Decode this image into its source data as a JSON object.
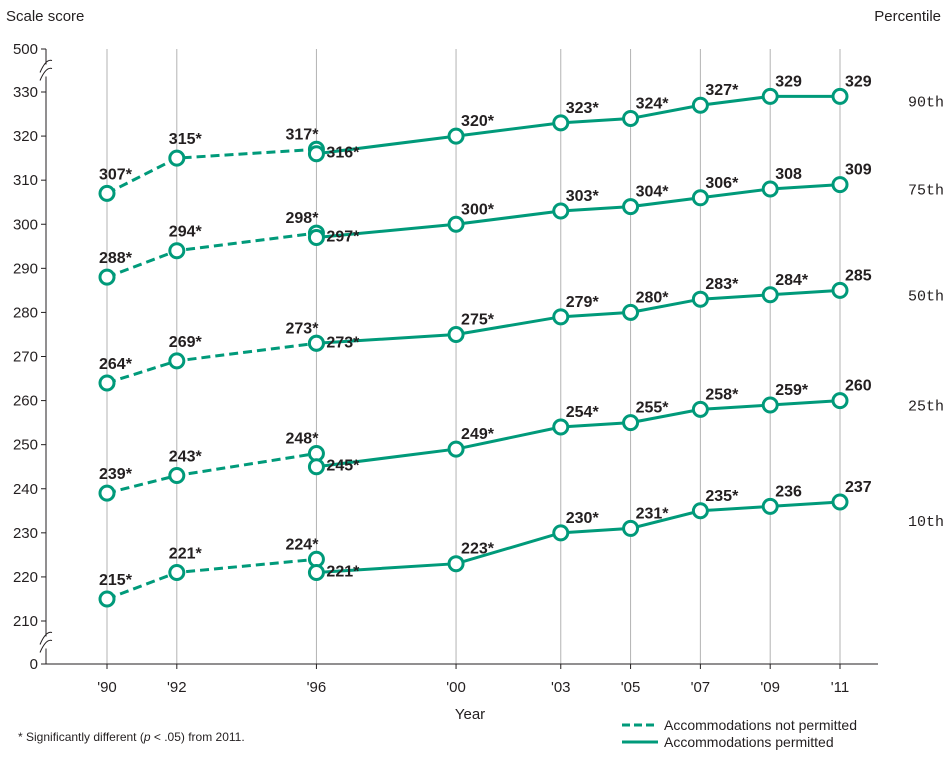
{
  "chart_data": {
    "type": "line",
    "ylabel": "Scale score",
    "xlabel": "Year",
    "right_axis_label": "Percentile",
    "y_ticks": [
      0,
      210,
      220,
      230,
      240,
      250,
      260,
      270,
      280,
      290,
      300,
      310,
      320,
      330,
      500
    ],
    "y_axis_break": "axis is broken between 0 and 210 and between 330 and 500",
    "x_categories": [
      "'90",
      "'92",
      "'96",
      "'00",
      "'03",
      "'05",
      "'07",
      "'09",
      "'11"
    ],
    "x_years": [
      1990,
      1992,
      1996,
      2000,
      2003,
      2005,
      2007,
      2009,
      2011
    ],
    "grid": "vertical lines at each year",
    "series_style": {
      "not_permitted": "dashed",
      "permitted": "solid"
    },
    "colors": {
      "line": "#009a7a",
      "marker_fill": "#ffffff",
      "text": "#231f20",
      "grid": "#b3b3b3"
    },
    "series": [
      {
        "name": "90th",
        "not_permitted": {
          "x": [
            1990,
            1992,
            1996
          ],
          "y": [
            307,
            315,
            317
          ],
          "labels": [
            "307*",
            "315*",
            "317*"
          ]
        },
        "permitted": {
          "x": [
            1996,
            2000,
            2003,
            2005,
            2007,
            2009,
            2011
          ],
          "y": [
            316,
            320,
            323,
            324,
            327,
            329,
            329
          ],
          "labels": [
            "316*",
            "320*",
            "323*",
            "324*",
            "327*",
            "329",
            "329"
          ]
        }
      },
      {
        "name": "75th",
        "not_permitted": {
          "x": [
            1990,
            1992,
            1996
          ],
          "y": [
            288,
            294,
            298
          ],
          "labels": [
            "288*",
            "294*",
            "298*"
          ]
        },
        "permitted": {
          "x": [
            1996,
            2000,
            2003,
            2005,
            2007,
            2009,
            2011
          ],
          "y": [
            297,
            300,
            303,
            304,
            306,
            308,
            309
          ],
          "labels": [
            "297*",
            "300*",
            "303*",
            "304*",
            "306*",
            "308",
            "309"
          ]
        }
      },
      {
        "name": "50th",
        "not_permitted": {
          "x": [
            1990,
            1992,
            1996
          ],
          "y": [
            264,
            269,
            273
          ],
          "labels": [
            "264*",
            "269*",
            "273*"
          ]
        },
        "permitted": {
          "x": [
            1996,
            2000,
            2003,
            2005,
            2007,
            2009,
            2011
          ],
          "y": [
            273,
            275,
            279,
            280,
            283,
            284,
            285
          ],
          "labels": [
            "273*",
            "275*",
            "279*",
            "280*",
            "283*",
            "284*",
            "285"
          ]
        }
      },
      {
        "name": "25th",
        "not_permitted": {
          "x": [
            1990,
            1992,
            1996
          ],
          "y": [
            239,
            243,
            248
          ],
          "labels": [
            "239*",
            "243*",
            "248*"
          ]
        },
        "permitted": {
          "x": [
            1996,
            2000,
            2003,
            2005,
            2007,
            2009,
            2011
          ],
          "y": [
            245,
            249,
            254,
            255,
            258,
            259,
            260
          ],
          "labels": [
            "245*",
            "249*",
            "254*",
            "255*",
            "258*",
            "259*",
            "260"
          ]
        }
      },
      {
        "name": "10th",
        "not_permitted": {
          "x": [
            1990,
            1992,
            1996
          ],
          "y": [
            215,
            221,
            224
          ],
          "labels": [
            "215*",
            "221*",
            "224*"
          ]
        },
        "permitted": {
          "x": [
            1996,
            2000,
            2003,
            2005,
            2007,
            2009,
            2011
          ],
          "y": [
            221,
            223,
            230,
            231,
            235,
            236,
            237
          ],
          "labels": [
            "221*",
            "223*",
            "230*",
            "231*",
            "235*",
            "236",
            "237"
          ]
        }
      }
    ],
    "footnote_prefix": "* Significantly different (",
    "footnote_p": "p",
    "footnote_suffix": " < .05) from 2011.",
    "legend": [
      {
        "label": "Accommodations not permitted",
        "style": "dashed"
      },
      {
        "label": "Accommodations permitted",
        "style": "solid"
      }
    ]
  }
}
